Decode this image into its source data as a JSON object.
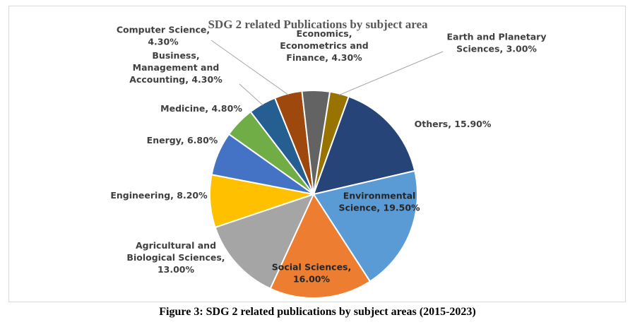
{
  "chart_data": {
    "type": "pie",
    "title": "SDG 2 related Publications by subject area",
    "unit": "%",
    "slices": [
      {
        "name": "Earth and Planetary Sciences",
        "value": 3.0,
        "label": [
          "Earth and Planetary",
          "Sciences, 3.00%"
        ],
        "color": "#997300"
      },
      {
        "name": "Others",
        "value": 15.9,
        "label": [
          "Others, 15.90%"
        ],
        "color": "#264478"
      },
      {
        "name": "Environmental Science",
        "value": 19.5,
        "label": [
          "Environmental",
          "Science, 19.50%"
        ],
        "color": "#5b9bd5"
      },
      {
        "name": "Social Sciences",
        "value": 16.0,
        "label": [
          "Social Sciences,",
          "16.00%"
        ],
        "color": "#ed7d31"
      },
      {
        "name": "Agricultural and Biological Sciences",
        "value": 13.0,
        "label": [
          "Agricultural and",
          "Biological Sciences,",
          "13.00%"
        ],
        "color": "#a5a5a5"
      },
      {
        "name": "Engineering",
        "value": 8.2,
        "label": [
          "Engineering, 8.20%"
        ],
        "color": "#ffc000"
      },
      {
        "name": "Energy",
        "value": 6.8,
        "label": [
          "Energy, 6.80%"
        ],
        "color": "#4472c4"
      },
      {
        "name": "Medicine",
        "value": 4.8,
        "label": [
          "Medicine, 4.80%"
        ],
        "color": "#70ad47"
      },
      {
        "name": "Business, Management and Accounting",
        "value": 4.3,
        "label": [
          "Business,",
          "Management and",
          "Accounting, 4.30%"
        ],
        "color": "#255e91"
      },
      {
        "name": "Computer Science",
        "value": 4.3,
        "label": [
          "Computer Science,",
          "4.30%"
        ],
        "color": "#9e480e"
      },
      {
        "name": "Economics, Econometrics and Finance",
        "value": 4.3,
        "label": [
          "Economics,",
          "Econometrics and",
          "Finance, 4.30%"
        ],
        "color": "#636363"
      }
    ]
  },
  "caption": "Figure 3: SDG 2 related publications by subject areas (2015-2023)"
}
